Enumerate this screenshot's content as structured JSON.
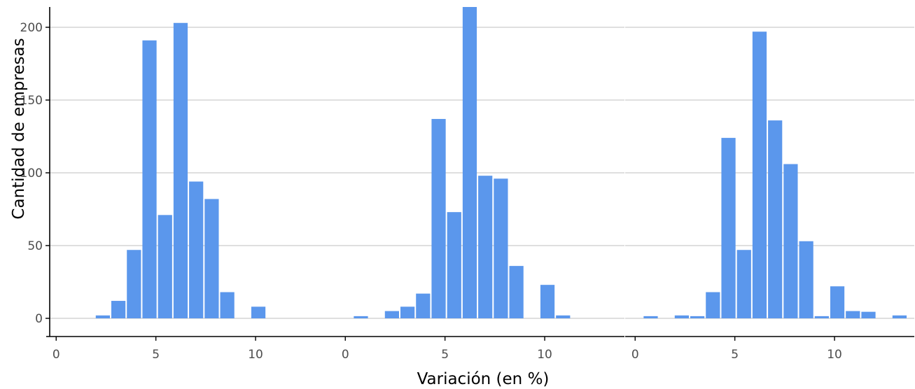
{
  "chart_data": {
    "type": "bar",
    "xlabel": "Variación (en %)",
    "ylabel": "Cantidad de empresas",
    "xlim": [
      -0.5,
      14
    ],
    "ylim": [
      -6,
      213
    ],
    "xticks": [
      0,
      5,
      10
    ],
    "yticks": [
      0,
      50,
      100,
      150,
      200
    ],
    "bin_width": 0.78,
    "grid": "horizontal major",
    "legend": "none",
    "bar_color": "#5b97ec",
    "panels": [
      {
        "x": [
          2.34,
          3.12,
          3.9,
          4.68,
          5.46,
          6.24,
          7.02,
          7.8,
          8.58,
          10.14
        ],
        "values": [
          2,
          12,
          47,
          191,
          71,
          203,
          94,
          82,
          18,
          8
        ]
      },
      {
        "x": [
          0.78,
          2.34,
          3.12,
          3.9,
          4.68,
          5.46,
          6.24,
          7.02,
          7.8,
          8.58,
          10.14,
          10.92
        ],
        "values": [
          1.5,
          5,
          8,
          17,
          137,
          73,
          215,
          98,
          96,
          36,
          23,
          2
        ]
      },
      {
        "x": [
          0.78,
          2.34,
          3.12,
          3.9,
          4.68,
          5.46,
          6.24,
          7.02,
          7.8,
          8.58,
          9.36,
          10.14,
          10.92,
          11.7,
          13.26
        ],
        "values": [
          1.5,
          2,
          1.5,
          18,
          124,
          47,
          197,
          136,
          106,
          53,
          1.5,
          22,
          5,
          4.5,
          2
        ]
      }
    ]
  }
}
